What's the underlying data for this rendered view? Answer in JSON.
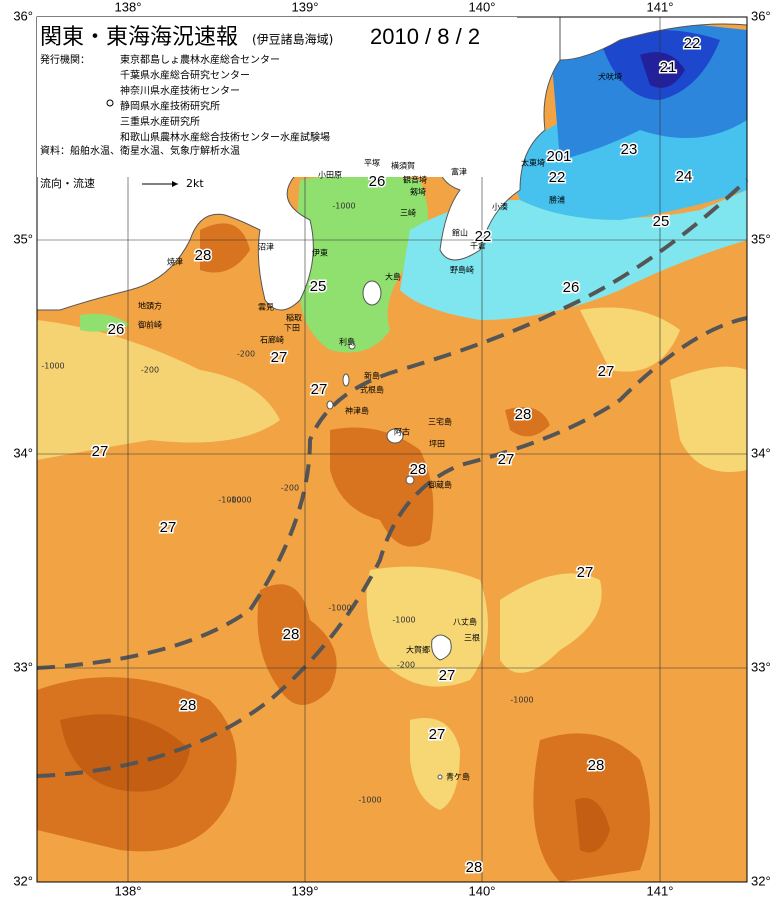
{
  "header": {
    "title": "関東・東海海況速報",
    "subtitle": "(伊豆諸島海域)",
    "date": "2010 / 8 / 2"
  },
  "issuers": {
    "label": "発行機関：",
    "items": [
      "東京都島しょ農林水産総合センター",
      "千葉県水産総合研究センター",
      "神奈川県水産技術センター",
      "静岡県水産技術研究所",
      "三重県水産研究所",
      "和歌山県農林水産総合技術センター水産試験場"
    ]
  },
  "sources": "資料：船舶水温、衛星水温、気象庁解析水温",
  "legend": {
    "label": "流向・流速",
    "scale": "2kt"
  },
  "axes": {
    "lon": [
      "138°",
      "139°",
      "140°",
      "141°"
    ],
    "lat": [
      "36°",
      "35°",
      "34°",
      "33°",
      "32°"
    ]
  },
  "temperature_labels": [
    "22",
    "21",
    "201",
    "23",
    "22",
    "24",
    "26",
    "22",
    "25",
    "26",
    "28",
    "25",
    "26",
    "27",
    "27",
    "27",
    "28",
    "27",
    "28",
    "27",
    "27",
    "27",
    "28",
    "27",
    "28",
    "27",
    "28",
    "28"
  ],
  "place_names": [
    "犬吠埼",
    "太東埼",
    "勝浦",
    "小湊",
    "館山",
    "千倉",
    "野島崎",
    "富津",
    "平塚",
    "横須賀",
    "観音埼",
    "剱埼",
    "三崎",
    "小田原",
    "沼津",
    "焼津",
    "伊東",
    "稲取",
    "下田",
    "雲見",
    "石廊崎",
    "大島",
    "利島",
    "新島",
    "式根島",
    "神津島",
    "三宅島",
    "阿古",
    "坪田",
    "御蔵島",
    "八丈島",
    "三根",
    "大賀郷",
    "青ケ島",
    "地頭方",
    "御前崎"
  ],
  "depth_labels": [
    "-1000",
    "-200",
    "-1000",
    "-200",
    "-1000",
    "-200",
    "-1000",
    "-1000",
    "-1000",
    "-200",
    "-1000",
    "-1000"
  ]
}
